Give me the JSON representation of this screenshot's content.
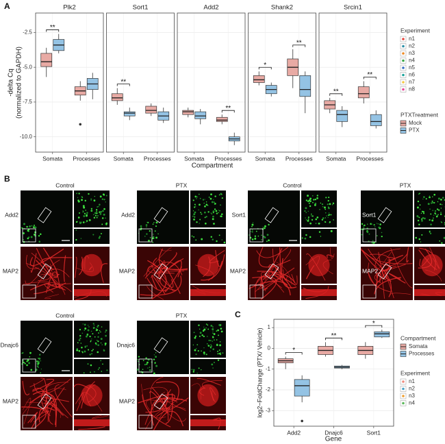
{
  "chart_data": [
    {
      "type": "box",
      "panel_label": "A",
      "ylabel": [
        "-delta Cq",
        "(normalized to GAPDH)"
      ],
      "xlabel": "Compartment",
      "categories": [
        "Somata",
        "Processes"
      ],
      "series_legend_title": "PTXTreatment",
      "series": [
        {
          "name": "Mock",
          "color": "#e8aaa4"
        },
        {
          "name": "PTX",
          "color": "#94c3e4"
        }
      ],
      "experiments": {
        "title": "Experiment",
        "names": [
          "n1",
          "n2",
          "n3",
          "n4",
          "n5",
          "n6",
          "n7",
          "n8"
        ],
        "colors": [
          "#e8473f",
          "#2a8fa8",
          "#f08a24",
          "#3aa845",
          "#3a6fc4",
          "#1aa39a",
          "#f5c842",
          "#e8479a"
        ]
      },
      "ylim": [
        -11.1,
        -1.1
      ],
      "yticks": [
        -2.5,
        {
          "value": -5,
          "label": "-5.0"
        },
        -7.5,
        {
          "value": -10,
          "label": "-10.0"
        }
      ],
      "grid": true,
      "facets": [
        {
          "title": "Plk2",
          "boxes": [
            [
              {
                "min": -5.7,
                "q1": -4.95,
                "median": -4.6,
                "q3": -4.0,
                "max": -3.6
              },
              {
                "min": -4.0,
                "q1": -3.8,
                "median": -3.4,
                "q3": -3.0,
                "max": -2.6
              }
            ],
            [
              {
                "min": -7.4,
                "q1": -7.0,
                "median": -6.7,
                "q3": -6.4,
                "max": -6.0,
                "outliers": [
                  -9.1
                ]
              },
              {
                "min": -7.3,
                "q1": -6.6,
                "median": -6.2,
                "q3": -5.8,
                "max": -5.4
              }
            ]
          ],
          "significance": [
            {
              "category": 0,
              "label": "**"
            }
          ]
        },
        {
          "title": "Sort1",
          "boxes": [
            [
              {
                "min": -7.7,
                "q1": -7.4,
                "median": -7.2,
                "q3": -6.9,
                "max": -6.5
              },
              {
                "min": -8.8,
                "q1": -8.5,
                "median": -8.3,
                "q3": -8.2,
                "max": -7.9
              }
            ],
            [
              {
                "min": -8.5,
                "q1": -8.3,
                "median": -8.1,
                "q3": -7.8,
                "max": -7.6
              },
              {
                "min": -9.0,
                "q1": -8.8,
                "median": -8.5,
                "q3": -8.2,
                "max": -7.9
              }
            ]
          ],
          "significance": [
            {
              "category": 0,
              "label": "**"
            }
          ]
        },
        {
          "title": "Add2",
          "boxes": [
            [
              {
                "min": -8.6,
                "q1": -8.4,
                "median": -8.2,
                "q3": -8.1,
                "max": -7.9
              },
              {
                "min": -9.1,
                "q1": -8.7,
                "median": -8.5,
                "q3": -8.2,
                "max": -8.0
              }
            ],
            [
              {
                "min": -9.1,
                "q1": -8.9,
                "median": -8.8,
                "q3": -8.6,
                "max": -8.4
              },
              {
                "min": -10.6,
                "q1": -10.3,
                "median": -10.15,
                "q3": -10.0,
                "max": -9.7
              }
            ]
          ],
          "significance": [
            {
              "category": 1,
              "label": "**"
            }
          ]
        },
        {
          "title": "Shank2",
          "boxes": [
            [
              {
                "min": -6.3,
                "q1": -6.1,
                "median": -5.9,
                "q3": -5.6,
                "max": -5.3
              },
              {
                "min": -7.1,
                "q1": -6.9,
                "median": -6.6,
                "q3": -6.3,
                "max": -6.1
              }
            ],
            [
              {
                "min": -6.5,
                "q1": -5.6,
                "median": -5.0,
                "q3": -4.4,
                "max": -3.7
              },
              {
                "min": -8.3,
                "q1": -7.1,
                "median": -6.6,
                "q3": -5.6,
                "max": -5.3
              }
            ]
          ],
          "significance": [
            {
              "category": 0,
              "label": "*"
            },
            {
              "category": 1,
              "label": "**"
            }
          ]
        },
        {
          "title": "Srcin1",
          "boxes": [
            [
              {
                "min": -8.3,
                "q1": -8.0,
                "median": -7.7,
                "q3": -7.4,
                "max": -7.2
              },
              {
                "min": -9.3,
                "q1": -8.9,
                "median": -8.4,
                "q3": -8.1,
                "max": -7.8
              }
            ],
            [
              {
                "min": -7.6,
                "q1": -7.2,
                "median": -6.9,
                "q3": -6.4,
                "max": -6.0
              },
              {
                "min": -9.4,
                "q1": -9.2,
                "median": -8.9,
                "q3": -8.4,
                "max": -8.1
              }
            ]
          ],
          "significance": [
            {
              "category": 0,
              "label": "**"
            },
            {
              "category": 1,
              "label": "**"
            }
          ]
        }
      ]
    },
    {
      "type": "box",
      "panel_label": "C",
      "ylabel": [
        "log2−FoldChange (PTX/ Vehicle)"
      ],
      "xlabel": "Gene",
      "categories": [
        "Add2",
        "Dnajc6",
        "Sort1"
      ],
      "series_legend_title": "Compartment",
      "series": [
        {
          "name": "Somata",
          "color": "#e8aaa4"
        },
        {
          "name": "Processes",
          "color": "#94c3e4"
        }
      ],
      "experiments": {
        "title": "Experiment",
        "names": [
          "n1",
          "n2",
          "n3",
          "n4"
        ],
        "colors": [
          "#f08a7e",
          "#4aa3c8",
          "#f0a030",
          "#5cb85c"
        ]
      },
      "ylim": [
        -3.75,
        1.4
      ],
      "yticks": [
        1,
        0,
        -1,
        -2,
        -3
      ],
      "grid": true,
      "facets": [
        {
          "boxes": [
            [
              {
                "min": -1.0,
                "q1": -0.7,
                "median": -0.6,
                "q3": -0.5,
                "max": -0.4
              },
              {
                "min": -2.6,
                "q1": -2.3,
                "median": -1.8,
                "q3": -1.5,
                "max": -1.3,
                "outliers": [
                  -3.5
                ]
              }
            ],
            [
              {
                "min": -0.4,
                "q1": -0.3,
                "median": -0.1,
                "q3": 0.1,
                "max": 0.3
              },
              {
                "min": -1.0,
                "q1": -0.95,
                "median": -0.9,
                "q3": -0.85,
                "max": -0.8
              }
            ],
            [
              {
                "min": -0.5,
                "q1": -0.3,
                "median": -0.1,
                "q3": 0.1,
                "max": 0.3
              },
              {
                "min": 0.5,
                "q1": 0.55,
                "median": 0.7,
                "q3": 0.8,
                "max": 0.9
              }
            ]
          ],
          "significance": [
            {
              "category": 0,
              "label": "*"
            },
            {
              "category": 1,
              "label": "**"
            },
            {
              "category": 2,
              "label": "*"
            }
          ]
        }
      ]
    }
  ],
  "panel_b": {
    "label": "B",
    "groups": [
      {
        "condition": "Control",
        "gene": "Add2",
        "stain": "MAP2"
      },
      {
        "condition": "PTX",
        "gene": "Add2",
        "stain": "MAP2"
      },
      {
        "condition": "Control",
        "gene": "Sort1",
        "stain": "MAP2"
      },
      {
        "condition": "PTX",
        "gene": "Sort1",
        "stain": "MAP2"
      },
      {
        "condition": "Control",
        "gene": "Dnajc6",
        "stain": "MAP2"
      },
      {
        "condition": "PTX",
        "gene": "Dnajc6",
        "stain": "MAP2"
      }
    ]
  }
}
